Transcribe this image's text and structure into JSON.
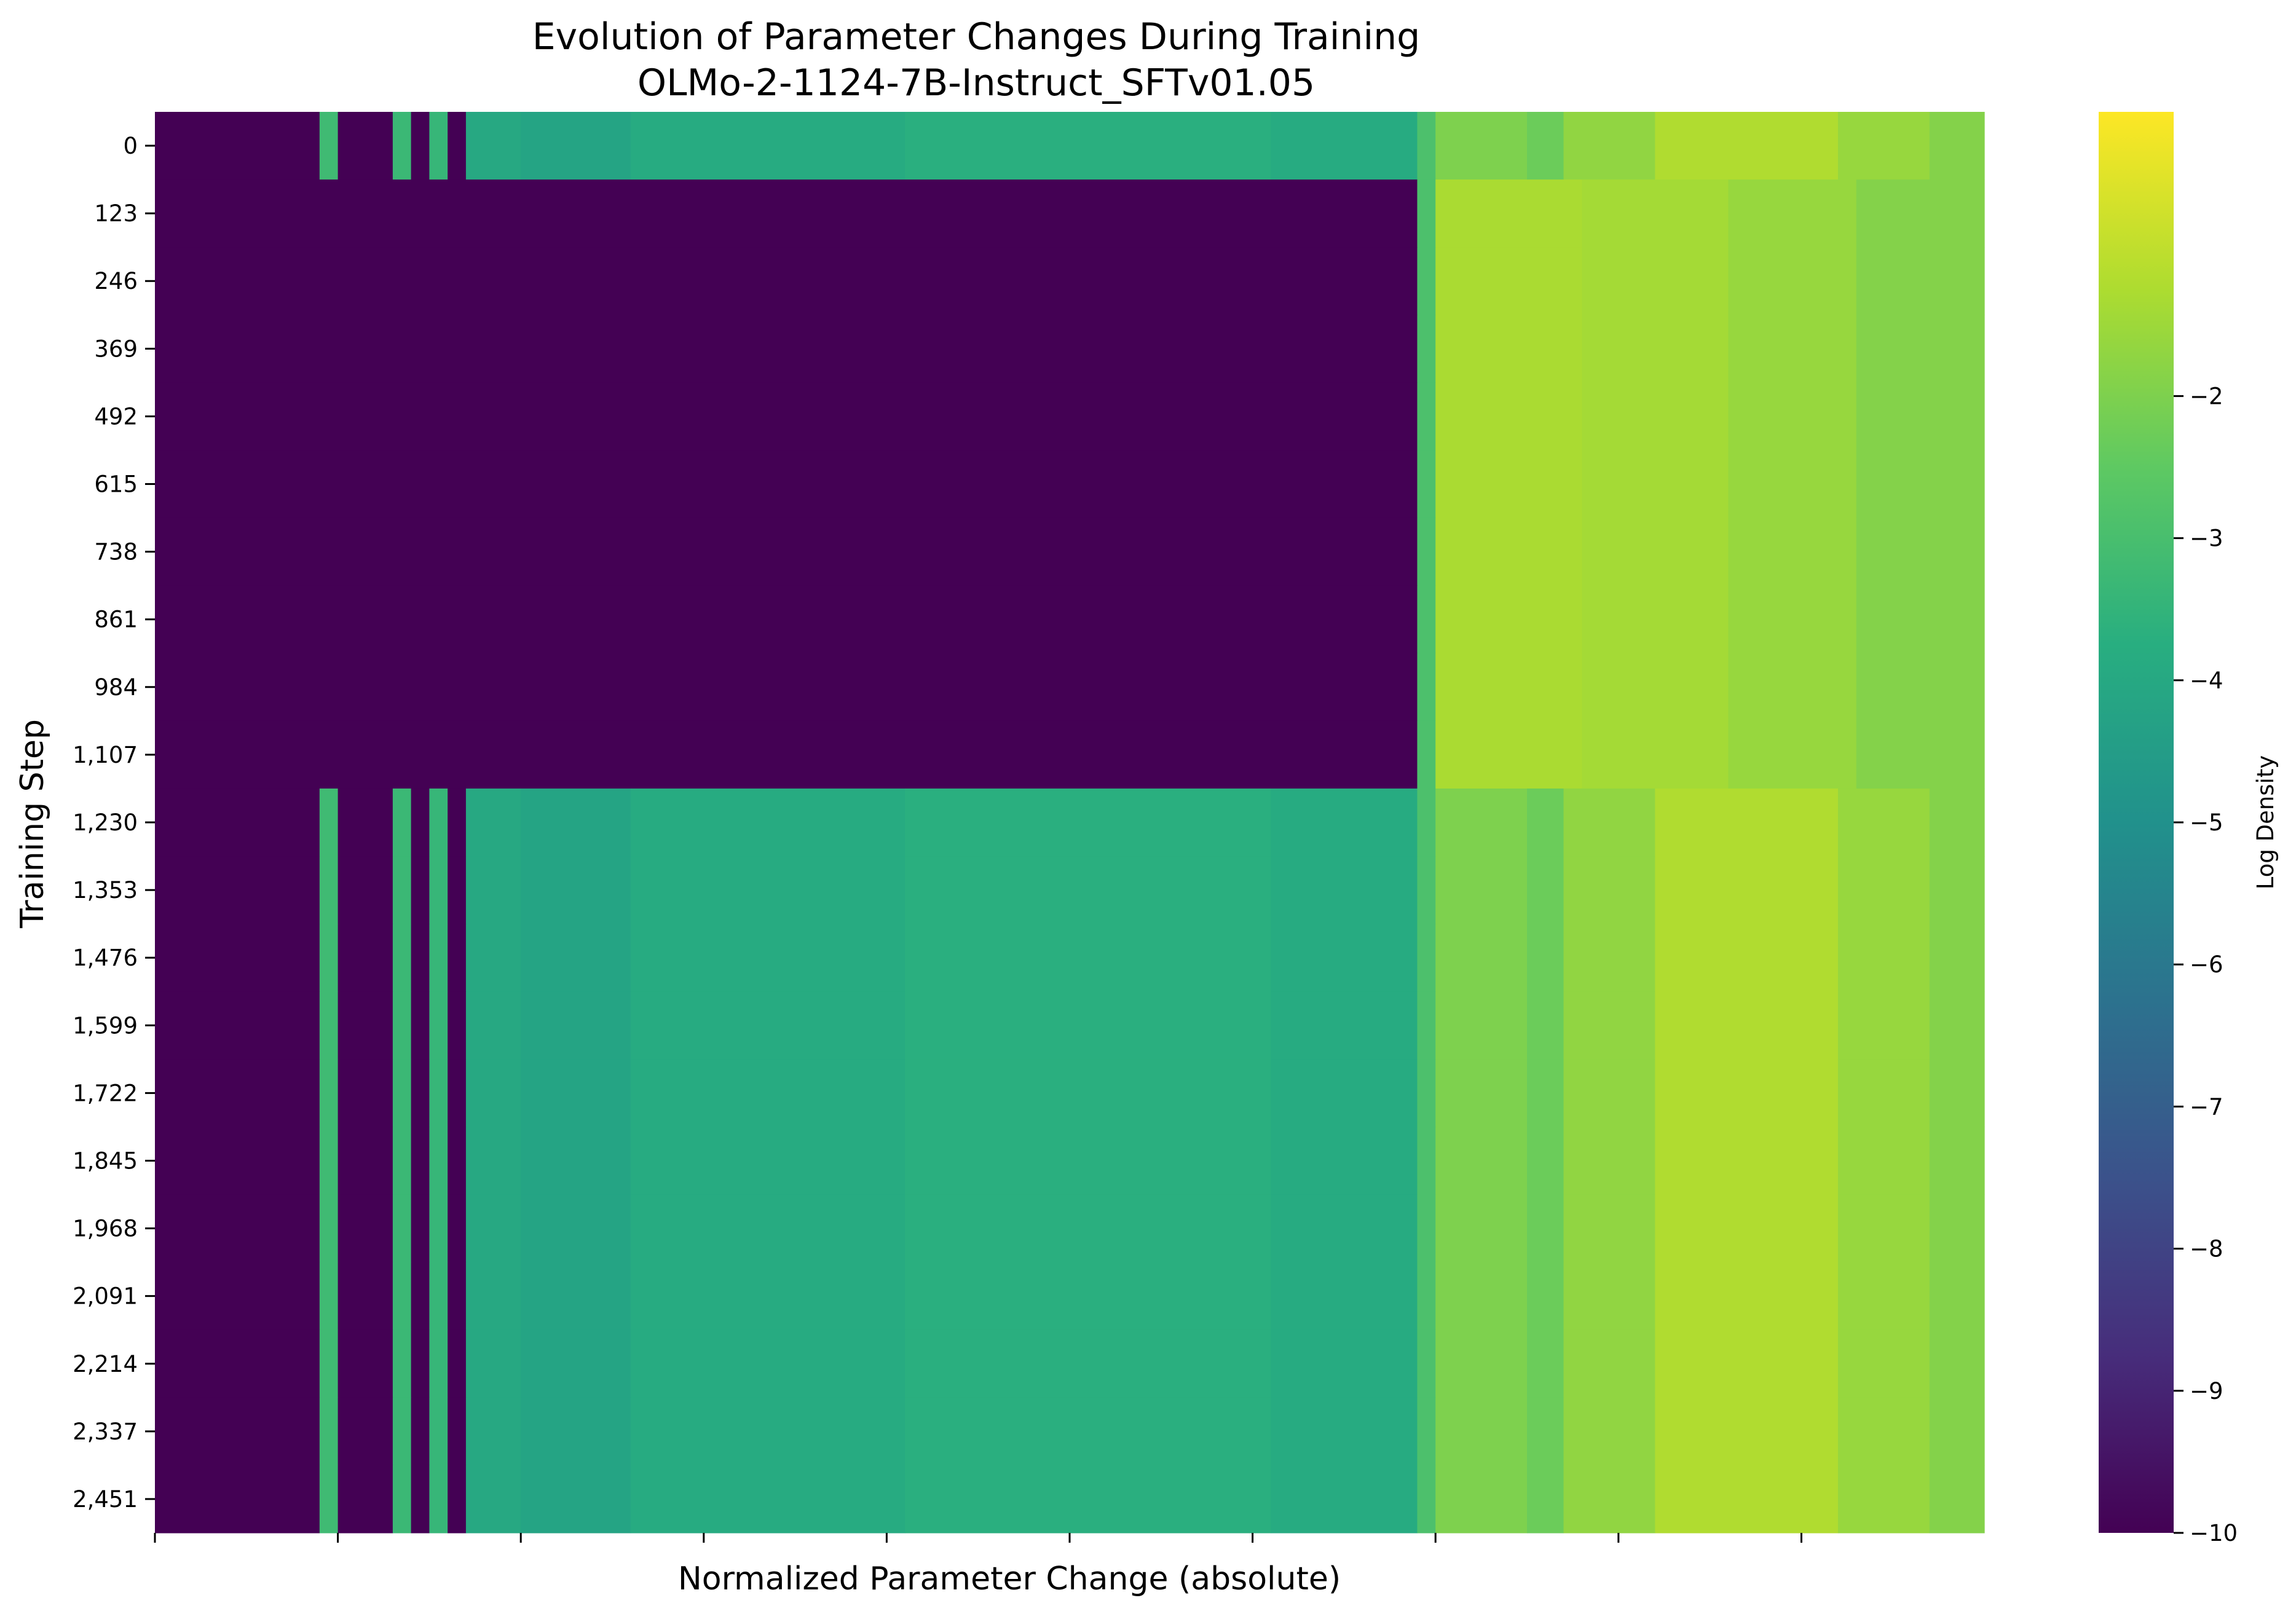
{
  "chart_data": {
    "type": "heatmap",
    "title": "Evolution of Parameter Changes During Training",
    "subtitle": "OLMo-2-1124-7B-Instruct_SFTv01.05",
    "xlabel": "Normalized Parameter Change (absolute)",
    "ylabel": "Training Step",
    "colorbar_label": "Log Density",
    "colormap": "viridis",
    "value_range": [
      -10,
      0
    ],
    "colorbar_ticks": [
      {
        "value": -2,
        "label": "−2"
      },
      {
        "value": -3,
        "label": "−3"
      },
      {
        "value": -4,
        "label": "−4"
      },
      {
        "value": -5,
        "label": "−5"
      },
      {
        "value": -6,
        "label": "−6"
      },
      {
        "value": -7,
        "label": "−7"
      },
      {
        "value": -8,
        "label": "−8"
      },
      {
        "value": -9,
        "label": "−9"
      },
      {
        "value": -10,
        "label": "−10"
      }
    ],
    "x_bin_count": 100,
    "x_tick_bins": [
      0,
      10,
      20,
      30,
      40,
      50,
      60,
      70,
      80,
      90
    ],
    "y_tick_labels": [
      "0",
      "123",
      "246",
      "369",
      "492",
      "615",
      "738",
      "861",
      "984",
      "1,107",
      "1,230",
      "1,353",
      "1,476",
      "1,599",
      "1,722",
      "1,845",
      "1,968",
      "2,091",
      "2,214",
      "2,337",
      "2,451"
    ],
    "row_profiles": [
      "full",
      "sparse",
      "sparse",
      "sparse",
      "sparse",
      "sparse",
      "sparse",
      "sparse",
      "sparse",
      "sparse",
      "full",
      "full",
      "full",
      "full",
      "full",
      "full",
      "full",
      "full",
      "full",
      "full",
      "full"
    ],
    "profiles": {
      "full": [
        {
          "from": 0,
          "to": 8,
          "value": -10
        },
        {
          "from": 9,
          "to": 9,
          "value": -3.2
        },
        {
          "from": 10,
          "to": 12,
          "value": -10
        },
        {
          "from": 13,
          "to": 13,
          "value": -3.3
        },
        {
          "from": 14,
          "to": 14,
          "value": -10
        },
        {
          "from": 15,
          "to": 15,
          "value": -3.4
        },
        {
          "from": 16,
          "to": 16,
          "value": -10
        },
        {
          "from": 17,
          "to": 19,
          "value": -4.0
        },
        {
          "from": 20,
          "to": 25,
          "value": -4.2
        },
        {
          "from": 26,
          "to": 40,
          "value": -3.9
        },
        {
          "from": 41,
          "to": 60,
          "value": -3.7
        },
        {
          "from": 61,
          "to": 68,
          "value": -3.9
        },
        {
          "from": 69,
          "to": 69,
          "value": -2.9
        },
        {
          "from": 70,
          "to": 74,
          "value": -2.0
        },
        {
          "from": 75,
          "to": 76,
          "value": -2.3
        },
        {
          "from": 77,
          "to": 81,
          "value": -1.7
        },
        {
          "from": 82,
          "to": 91,
          "value": -1.2
        },
        {
          "from": 92,
          "to": 96,
          "value": -1.6
        },
        {
          "from": 97,
          "to": 99,
          "value": -1.9
        }
      ],
      "sparse": [
        {
          "from": 0,
          "to": 68,
          "value": -10
        },
        {
          "from": 69,
          "to": 69,
          "value": -2.9
        },
        {
          "from": 70,
          "to": 77,
          "value": -1.3
        },
        {
          "from": 78,
          "to": 85,
          "value": -1.4
        },
        {
          "from": 86,
          "to": 92,
          "value": -1.6
        },
        {
          "from": 93,
          "to": 99,
          "value": -1.9
        }
      ]
    }
  }
}
